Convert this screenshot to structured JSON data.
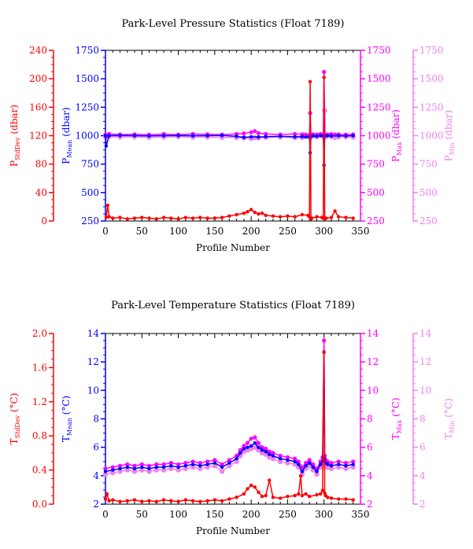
{
  "chart_data": [
    {
      "type": "line",
      "title": "Park-Level Pressure Statistics (Float 7189)",
      "xlabel": "Profile Number",
      "xlim": [
        0,
        350
      ],
      "xticks": [
        "0",
        "50",
        "100",
        "150",
        "200",
        "250",
        "300",
        "350"
      ],
      "axes": {
        "stddev": {
          "label_main": "P",
          "label_sub": "StdDev",
          "label_unit": " (dbar)",
          "range": [
            0,
            240
          ],
          "ticks": [
            "0",
            "40",
            "80",
            "120",
            "160",
            "200",
            "240"
          ],
          "color": "#ff0000"
        },
        "mean": {
          "label_main": "P",
          "label_sub": "Mean",
          "label_unit": " (dbar)",
          "range": [
            1750,
            250
          ],
          "ticks": [
            "250",
            "500",
            "750",
            "1000",
            "1250",
            "1500",
            "1750"
          ],
          "color": "#0000ff"
        },
        "max": {
          "label_main": "P",
          "label_sub": "Max",
          "label_unit": " (dbar)",
          "range": [
            1750,
            250
          ],
          "ticks": [
            "250",
            "500",
            "750",
            "1000",
            "1250",
            "1500",
            "1750"
          ],
          "color": "#ff00ff"
        },
        "min": {
          "label_main": "P",
          "label_sub": "Min",
          "label_unit": " (dbar)",
          "range": [
            1750,
            250
          ],
          "ticks": [
            "250",
            "500",
            "750",
            "1000",
            "1250",
            "1500",
            "1750"
          ],
          "color": "#ee82ee"
        }
      },
      "series": [
        {
          "axis": "stddev",
          "color": "#ff0000",
          "x": [
            1,
            3,
            5,
            10,
            20,
            30,
            40,
            50,
            60,
            70,
            80,
            90,
            100,
            110,
            120,
            130,
            140,
            150,
            160,
            170,
            180,
            190,
            195,
            200,
            205,
            210,
            215,
            220,
            230,
            240,
            250,
            260,
            270,
            278,
            280,
            281,
            282,
            283,
            290,
            297,
            299,
            300,
            301,
            302,
            303,
            310,
            315,
            320,
            330,
            340
          ],
          "values": [
            5,
            22,
            6,
            4,
            5,
            3,
            4,
            5,
            4,
            3,
            5,
            4,
            3,
            5,
            4,
            5,
            4,
            4,
            5,
            7,
            9,
            11,
            13,
            16,
            12,
            10,
            11,
            8,
            7,
            6,
            7,
            6,
            9,
            8,
            6,
            196,
            3,
            4,
            6,
            5,
            4,
            202,
            3,
            4,
            4,
            5,
            14,
            6,
            5,
            4
          ]
        },
        {
          "axis": "mean",
          "color": "#0000ff",
          "x": [
            0,
            1,
            5,
            20,
            40,
            60,
            80,
            100,
            120,
            140,
            160,
            180,
            190,
            200,
            210,
            220,
            240,
            260,
            270,
            275,
            280,
            281,
            282,
            285,
            290,
            295,
            299,
            300,
            301,
            305,
            310,
            320,
            330,
            340
          ],
          "values": [
            1000,
            1090,
            1000,
            998,
            1000,
            1002,
            1000,
            999,
            1001,
            1000,
            998,
            1005,
            1015,
            1010,
            1012,
            1008,
            1005,
            1010,
            1008,
            1012,
            1010,
            1150,
            1002,
            1003,
            1004,
            1000,
            1002,
            1260,
            1002,
            1000,
            1003,
            1000,
            1002,
            1000
          ]
        },
        {
          "axis": "max",
          "color": "#ff00ff",
          "x": [
            0,
            1,
            5,
            20,
            40,
            60,
            80,
            100,
            120,
            140,
            160,
            180,
            190,
            200,
            205,
            210,
            220,
            240,
            260,
            270,
            275,
            280,
            281,
            282,
            285,
            290,
            295,
            299,
            300,
            301,
            305,
            310,
            315,
            320,
            330,
            340
          ],
          "values": [
            990,
            1010,
            985,
            990,
            988,
            992,
            986,
            990,
            985,
            988,
            990,
            985,
            980,
            970,
            960,
            978,
            985,
            990,
            985,
            988,
            990,
            995,
            800,
            990,
            988,
            990,
            986,
            990,
            440,
            988,
            990,
            986,
            990,
            988,
            990,
            988
          ]
        },
        {
          "axis": "min",
          "color": "#ee82ee",
          "x": [
            0,
            1,
            5,
            20,
            40,
            60,
            80,
            100,
            120,
            140,
            160,
            180,
            190,
            200,
            205,
            210,
            220,
            240,
            260,
            270,
            280,
            281,
            282,
            290,
            300,
            301,
            302,
            310,
            315,
            320,
            330,
            340
          ],
          "values": [
            1010,
            1005,
            1008,
            1012,
            1010,
            1015,
            1012,
            1010,
            1014,
            1012,
            1015,
            1016,
            1020,
            1025,
            1018,
            1020,
            1015,
            1012,
            1018,
            1015,
            1012,
            1015,
            1010,
            1012,
            1015,
            780,
            1012,
            1010,
            1015,
            1012,
            1010,
            1014
          ]
        }
      ]
    },
    {
      "type": "line",
      "title": "Park-Level Temperature Statistics (Float 7189)",
      "xlabel": "Profile Number",
      "xlim": [
        0,
        350
      ],
      "xticks": [
        "0",
        "50",
        "100",
        "150",
        "200",
        "250",
        "300",
        "350"
      ],
      "axes": {
        "stddev": {
          "label_main": "T",
          "label_sub": "StdDev",
          "label_unit": " (°C)",
          "range": [
            0,
            2
          ],
          "ticks": [
            "0.0",
            "0.4",
            "0.8",
            "1.2",
            "1.6",
            "2.0"
          ],
          "color": "#ff0000"
        },
        "mean": {
          "label_main": "T",
          "label_sub": "Mean",
          "label_unit": " (°C)",
          "range": [
            2,
            14
          ],
          "ticks": [
            "2",
            "4",
            "6",
            "8",
            "10",
            "12",
            "14"
          ],
          "color": "#0000ff"
        },
        "max": {
          "label_main": "T",
          "label_sub": "Max",
          "label_unit": " (°C)",
          "range": [
            2,
            14
          ],
          "ticks": [
            "2",
            "4",
            "6",
            "8",
            "10",
            "12",
            "14"
          ],
          "color": "#ff00ff"
        },
        "min": {
          "label_main": "T",
          "label_sub": "Min",
          "label_unit": " (°C)",
          "range": [
            2,
            14
          ],
          "ticks": [
            "2",
            "4",
            "6",
            "8",
            "10",
            "12",
            "14"
          ],
          "color": "#ee82ee"
        }
      },
      "series": [
        {
          "axis": "stddev",
          "color": "#ff0000",
          "x": [
            0,
            2,
            5,
            10,
            20,
            30,
            40,
            50,
            60,
            70,
            80,
            90,
            100,
            110,
            120,
            130,
            140,
            150,
            160,
            170,
            180,
            190,
            195,
            200,
            205,
            210,
            215,
            220,
            225,
            230,
            240,
            250,
            260,
            265,
            268,
            270,
            275,
            280,
            290,
            295,
            298,
            300,
            301,
            302,
            305,
            310,
            320,
            330,
            340
          ],
          "values": [
            0.06,
            0.12,
            0.04,
            0.05,
            0.03,
            0.04,
            0.05,
            0.03,
            0.04,
            0.03,
            0.05,
            0.04,
            0.03,
            0.05,
            0.04,
            0.03,
            0.04,
            0.05,
            0.04,
            0.06,
            0.08,
            0.12,
            0.18,
            0.22,
            0.2,
            0.14,
            0.09,
            0.1,
            0.28,
            0.08,
            0.07,
            0.09,
            0.1,
            0.12,
            0.33,
            0.1,
            0.12,
            0.09,
            0.11,
            0.12,
            0.16,
            1.78,
            0.13,
            0.1,
            0.08,
            0.07,
            0.06,
            0.06,
            0.05
          ]
        },
        {
          "axis": "mean",
          "color": "#0000ff",
          "x": [
            0,
            10,
            20,
            30,
            40,
            50,
            60,
            70,
            80,
            90,
            100,
            110,
            120,
            130,
            140,
            150,
            160,
            170,
            180,
            185,
            190,
            195,
            200,
            205,
            210,
            215,
            220,
            225,
            230,
            240,
            250,
            260,
            265,
            270,
            275,
            280,
            285,
            290,
            295,
            298,
            300,
            301,
            302,
            305,
            310,
            320,
            330,
            340
          ],
          "values": [
            4.3,
            4.4,
            4.5,
            4.6,
            4.5,
            4.6,
            4.5,
            4.6,
            4.6,
            4.7,
            4.6,
            4.7,
            4.8,
            4.7,
            4.8,
            4.9,
            4.6,
            4.9,
            5.2,
            5.6,
            5.9,
            6.0,
            6.1,
            6.3,
            6.0,
            5.8,
            5.7,
            5.5,
            5.4,
            5.2,
            5.1,
            5.0,
            4.8,
            4.3,
            4.7,
            4.9,
            4.6,
            4.3,
            4.8,
            5.0,
            12.7,
            5.2,
            4.9,
            4.8,
            4.7,
            4.8,
            4.7,
            4.8
          ]
        },
        {
          "axis": "max",
          "color": "#ff00ff",
          "x": [
            0,
            10,
            20,
            30,
            40,
            50,
            60,
            70,
            80,
            90,
            100,
            110,
            120,
            130,
            140,
            150,
            160,
            170,
            180,
            185,
            190,
            195,
            200,
            205,
            210,
            215,
            220,
            225,
            230,
            240,
            250,
            260,
            265,
            270,
            275,
            280,
            285,
            290,
            295,
            298,
            300,
            301,
            302,
            305,
            310,
            320,
            330,
            340
          ],
          "values": [
            4.5,
            4.6,
            4.7,
            4.8,
            4.7,
            4.8,
            4.7,
            4.8,
            4.8,
            4.9,
            4.8,
            4.9,
            5.0,
            4.9,
            5.0,
            5.1,
            4.8,
            5.1,
            5.4,
            5.8,
            6.1,
            6.3,
            6.6,
            6.7,
            6.3,
            6.0,
            5.9,
            5.7,
            5.6,
            5.4,
            5.3,
            5.2,
            5.0,
            4.6,
            4.9,
            5.1,
            4.8,
            4.5,
            5.0,
            5.3,
            13.5,
            5.4,
            5.1,
            5.0,
            4.9,
            5.0,
            4.9,
            5.0
          ]
        },
        {
          "axis": "min",
          "color": "#ee82ee",
          "x": [
            0,
            10,
            20,
            30,
            40,
            50,
            60,
            70,
            80,
            90,
            100,
            110,
            120,
            130,
            140,
            150,
            160,
            170,
            180,
            185,
            190,
            195,
            200,
            205,
            210,
            215,
            220,
            225,
            230,
            240,
            250,
            260,
            265,
            270,
            275,
            280,
            285,
            290,
            295,
            300,
            302,
            305,
            310,
            320,
            330,
            340
          ],
          "values": [
            4.1,
            4.2,
            4.3,
            4.4,
            4.3,
            4.4,
            4.3,
            4.4,
            4.4,
            4.5,
            4.4,
            4.5,
            4.6,
            4.5,
            4.6,
            4.7,
            4.3,
            4.7,
            5.0,
            5.4,
            5.7,
            5.8,
            5.9,
            6.0,
            5.8,
            5.6,
            5.5,
            5.3,
            5.2,
            5.0,
            4.9,
            4.8,
            4.6,
            4.1,
            4.5,
            4.7,
            4.4,
            4.1,
            4.6,
            4.8,
            4.7,
            4.6,
            4.5,
            4.6,
            4.5,
            4.6
          ]
        }
      ]
    }
  ]
}
